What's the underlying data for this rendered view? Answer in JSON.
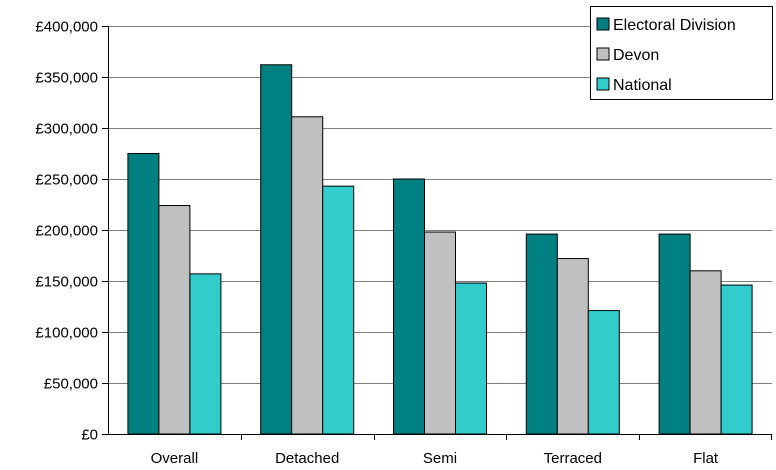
{
  "chart_data": {
    "type": "bar",
    "title": "",
    "xlabel": "",
    "ylabel": "",
    "categories": [
      "Overall",
      "Detached",
      "Semi",
      "Terraced",
      "Flat"
    ],
    "series": [
      {
        "name": "Electoral Division",
        "color": "#008080",
        "values": [
          275000,
          362000,
          250000,
          196000,
          196000
        ]
      },
      {
        "name": "Devon",
        "color": "#c0c0c0",
        "values": [
          224000,
          311000,
          198000,
          172000,
          160000
        ]
      },
      {
        "name": "National",
        "color": "#33cccc",
        "values": [
          157000,
          243000,
          148000,
          121000,
          146000
        ]
      }
    ],
    "ylim": [
      0,
      400000
    ],
    "yticks": [
      0,
      50000,
      100000,
      150000,
      200000,
      250000,
      300000,
      350000,
      400000
    ],
    "ytick_labels": [
      "£0",
      "£50,000",
      "£100,000",
      "£150,000",
      "£200,000",
      "£250,000",
      "£300,000",
      "£350,000",
      "£400,000"
    ],
    "grid": true,
    "legend_position": "top-right"
  }
}
